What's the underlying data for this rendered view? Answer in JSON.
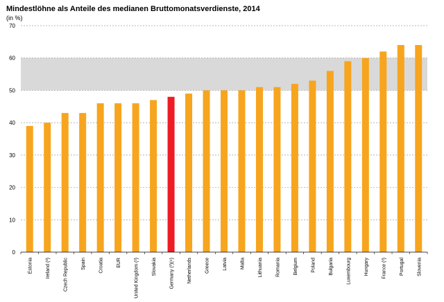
{
  "chart_data": {
    "type": "bar",
    "title": "Mindestlöhne als Anteile des medianen Bruttomonatsverdienste, 2014",
    "unit_label": "(in %)",
    "categories": [
      "Estonia",
      "Ireland (²)",
      "Czech Republic",
      "Spain",
      "Croatia",
      "EUR",
      "United Kingdom (²)",
      "Slovakia",
      "Germany (³)(⁴)",
      "Netherlands",
      "Greece",
      "Latvia",
      "Malta",
      "Lithuania",
      "Romania",
      "Belgium",
      "Poland",
      "Bulgaria",
      "Luxembourg",
      "Hungary",
      "France (²)",
      "Portugal",
      "Slovenia"
    ],
    "series": [
      {
        "values": [
          39,
          40,
          43,
          43,
          46,
          46,
          46,
          47,
          48,
          49,
          50,
          50,
          50,
          51,
          51,
          52,
          53,
          56,
          59,
          60,
          62,
          64,
          64
        ]
      }
    ],
    "ylim": [
      0,
      70
    ],
    "yticks": [
      0,
      10,
      20,
      30,
      40,
      50,
      60,
      70
    ],
    "highlight_band": [
      50,
      60
    ],
    "grid": "horizontal dashed",
    "colors": {
      "bar": "#F7A51E",
      "highlight": "#EE1C24",
      "band": "#D9D9D9",
      "grid": "#9A9A9A"
    },
    "highlight_category": "Germany (³)(⁴)"
  }
}
